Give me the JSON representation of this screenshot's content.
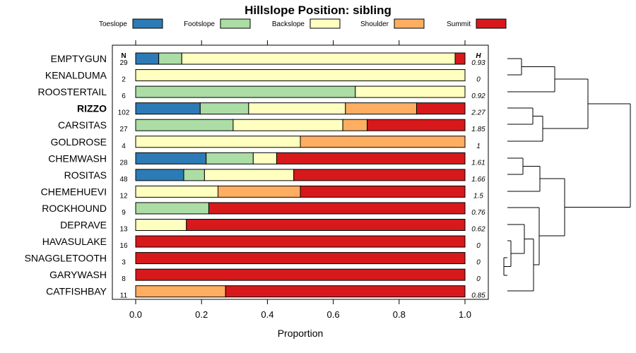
{
  "chart_data": {
    "type": "stacked-bar-horizontal",
    "title": "Hillslope Position: sibling",
    "xlabel": "Proportion",
    "xlim": [
      0,
      1
    ],
    "xticks": [
      "0.0",
      "0.2",
      "0.4",
      "0.6",
      "0.8",
      "1.0"
    ],
    "n_header": "N",
    "h_header": "H",
    "highlight_row": "RIZZO",
    "classes": [
      {
        "name": "Toeslope",
        "color": "#2c7bb6"
      },
      {
        "name": "Footslope",
        "color": "#abdda4"
      },
      {
        "name": "Backslope",
        "color": "#ffffbf"
      },
      {
        "name": "Shoulder",
        "color": "#fdae61"
      },
      {
        "name": "Summit",
        "color": "#d7191c"
      }
    ],
    "rows": [
      {
        "name": "EMPTYGUN",
        "n": "29",
        "h": "0.93",
        "values": [
          0.07,
          0.07,
          0.83,
          0.0,
          0.03
        ]
      },
      {
        "name": "KENALDUMA",
        "n": "2",
        "h": "0",
        "values": [
          0.0,
          0.0,
          1.0,
          0.0,
          0.0
        ]
      },
      {
        "name": "ROOSTERTAIL",
        "n": "6",
        "h": "0.92",
        "values": [
          0.0,
          0.667,
          0.333,
          0.0,
          0.0
        ]
      },
      {
        "name": "RIZZO",
        "n": "102",
        "h": "2.27",
        "values": [
          0.196,
          0.147,
          0.294,
          0.216,
          0.147
        ]
      },
      {
        "name": "CARSITAS",
        "n": "27",
        "h": "1.85",
        "values": [
          0.0,
          0.296,
          0.333,
          0.074,
          0.297
        ]
      },
      {
        "name": "GOLDROSE",
        "n": "4",
        "h": "1",
        "values": [
          0.0,
          0.0,
          0.5,
          0.5,
          0.0
        ]
      },
      {
        "name": "CHEMWASH",
        "n": "28",
        "h": "1.61",
        "values": [
          0.214,
          0.143,
          0.071,
          0.0,
          0.572
        ]
      },
      {
        "name": "ROSITAS",
        "n": "48",
        "h": "1.66",
        "values": [
          0.146,
          0.063,
          0.271,
          0.0,
          0.52
        ]
      },
      {
        "name": "CHEMEHUEVI",
        "n": "12",
        "h": "1.5",
        "values": [
          0.0,
          0.0,
          0.25,
          0.25,
          0.5
        ]
      },
      {
        "name": "ROCKHOUND",
        "n": "9",
        "h": "0.76",
        "values": [
          0.0,
          0.222,
          0.0,
          0.0,
          0.778
        ]
      },
      {
        "name": "DEPRAVE",
        "n": "13",
        "h": "0.62",
        "values": [
          0.0,
          0.0,
          0.154,
          0.0,
          0.846
        ]
      },
      {
        "name": "HAVASULAKE",
        "n": "16",
        "h": "0",
        "values": [
          0.0,
          0.0,
          0.0,
          0.0,
          1.0
        ]
      },
      {
        "name": "SNAGGLETOOTH",
        "n": "3",
        "h": "0",
        "values": [
          0.0,
          0.0,
          0.0,
          0.0,
          1.0
        ]
      },
      {
        "name": "GARYWASH",
        "n": "8",
        "h": "0",
        "values": [
          0.0,
          0.0,
          0.0,
          0.0,
          1.0
        ]
      },
      {
        "name": "CATFISHBAY",
        "n": "11",
        "h": "0.85",
        "values": [
          0.0,
          0.0,
          0.0,
          0.273,
          0.727
        ]
      }
    ]
  }
}
